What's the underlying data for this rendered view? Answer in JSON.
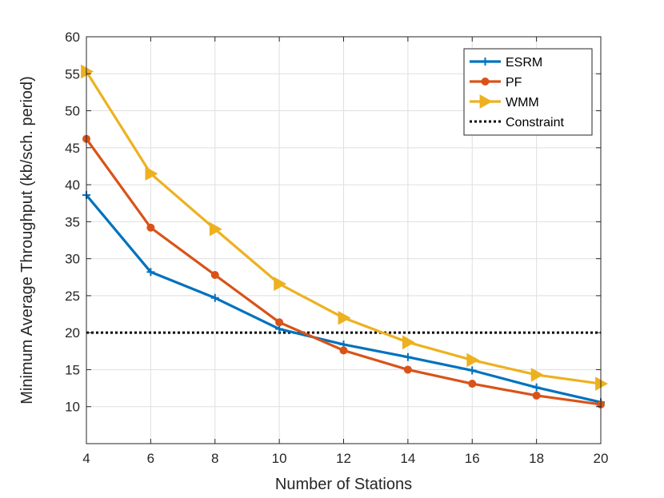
{
  "chart_data": {
    "type": "line",
    "title": "",
    "xlabel": "Number of Stations",
    "ylabel": "Minimum Average Throughput (kb/sch. period)",
    "x": [
      4,
      6,
      8,
      10,
      12,
      14,
      16,
      18,
      20
    ],
    "xlim": [
      4,
      20
    ],
    "ylim": [
      5,
      60
    ],
    "xticks": [
      4,
      6,
      8,
      10,
      12,
      14,
      16,
      18,
      20
    ],
    "yticks": [
      10,
      15,
      20,
      25,
      30,
      35,
      40,
      45,
      50,
      55,
      60
    ],
    "grid": true,
    "legend_position": "top-right",
    "series": [
      {
        "name": "ESRM",
        "color": "#0072BD",
        "marker": "plus",
        "values": [
          38.6,
          28.2,
          24.7,
          20.5,
          18.4,
          16.7,
          14.9,
          12.6,
          10.6
        ]
      },
      {
        "name": "PF",
        "color": "#D95319",
        "marker": "circle",
        "values": [
          46.2,
          34.2,
          27.8,
          21.4,
          17.6,
          15.0,
          13.1,
          11.5,
          10.3
        ]
      },
      {
        "name": "WMM",
        "color": "#EDB120",
        "marker": "triangle-right",
        "values": [
          55.3,
          41.5,
          34.0,
          26.6,
          22.0,
          18.7,
          16.3,
          14.3,
          13.1
        ]
      }
    ],
    "constraint": {
      "name": "Constraint",
      "value": 20,
      "color": "#000000",
      "style": "dotted"
    }
  }
}
